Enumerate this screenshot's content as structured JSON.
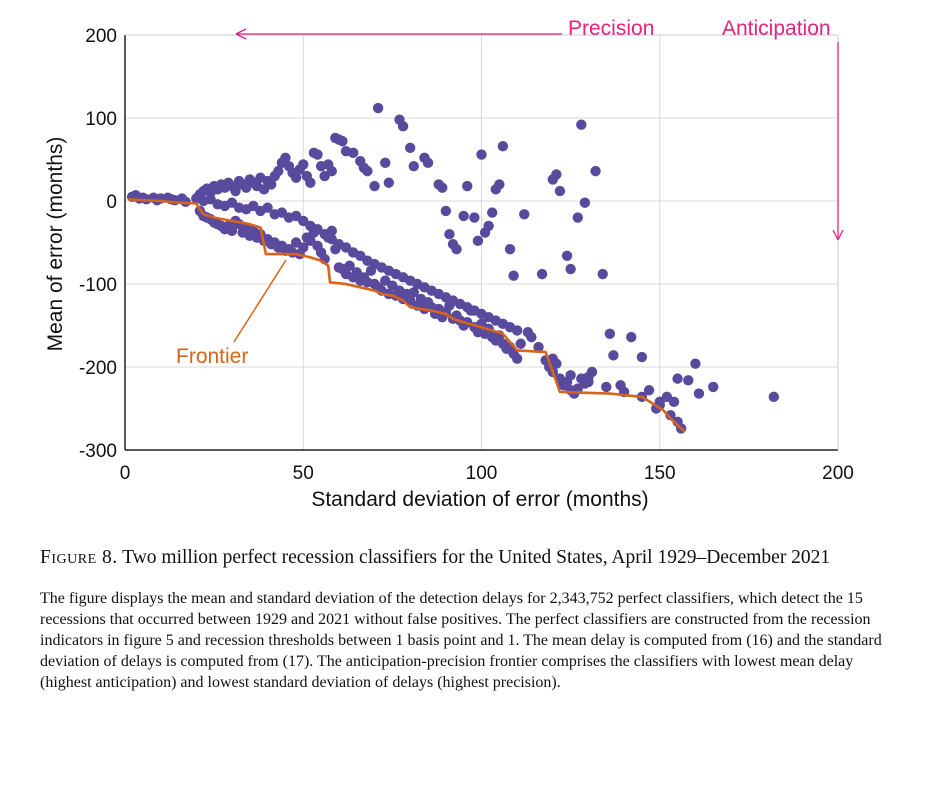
{
  "chart_data": {
    "type": "scatter",
    "xlabel": "Standard deviation of error (months)",
    "ylabel": "Mean of error (months)",
    "xlim": [
      0,
      200
    ],
    "ylim": [
      -300,
      200
    ],
    "xticks": [
      "0",
      "50",
      "100",
      "150",
      "200"
    ],
    "yticks": [
      "200",
      "100",
      "0",
      "-100",
      "-200",
      "-300"
    ],
    "grid": true,
    "marker_color": "#5a4a9e",
    "frontier_color": "#d8641c",
    "annotation_color": "#e3237e",
    "annotations": {
      "precision": "Precision",
      "anticipation": "Anticipation",
      "frontier": "Frontier"
    },
    "points": [
      [
        2,
        5
      ],
      [
        3,
        7
      ],
      [
        4,
        3
      ],
      [
        5,
        4
      ],
      [
        6,
        2
      ],
      [
        8,
        4
      ],
      [
        9,
        1
      ],
      [
        10,
        3
      ],
      [
        12,
        4
      ],
      [
        13,
        2
      ],
      [
        14,
        1
      ],
      [
        16,
        3
      ],
      [
        17,
        -1
      ],
      [
        20,
        3
      ],
      [
        21,
        8
      ],
      [
        22,
        12
      ],
      [
        23,
        15
      ],
      [
        24,
        10
      ],
      [
        25,
        18
      ],
      [
        26,
        14
      ],
      [
        27,
        20
      ],
      [
        28,
        16
      ],
      [
        29,
        22
      ],
      [
        30,
        18
      ],
      [
        31,
        12
      ],
      [
        32,
        24
      ],
      [
        33,
        20
      ],
      [
        34,
        16
      ],
      [
        35,
        26
      ],
      [
        36,
        22
      ],
      [
        37,
        18
      ],
      [
        38,
        28
      ],
      [
        39,
        14
      ],
      [
        40,
        24
      ],
      [
        41,
        20
      ],
      [
        42,
        30
      ],
      [
        43,
        36
      ],
      [
        44,
        46
      ],
      [
        45,
        52
      ],
      [
        46,
        42
      ],
      [
        47,
        34
      ],
      [
        48,
        28
      ],
      [
        49,
        38
      ],
      [
        50,
        44
      ],
      [
        51,
        30
      ],
      [
        52,
        22
      ],
      [
        53,
        58
      ],
      [
        54,
        56
      ],
      [
        55,
        42
      ],
      [
        56,
        30
      ],
      [
        57,
        44
      ],
      [
        58,
        36
      ],
      [
        59,
        76
      ],
      [
        60,
        74
      ],
      [
        61,
        72
      ],
      [
        62,
        60
      ],
      [
        64,
        58
      ],
      [
        66,
        48
      ],
      [
        67,
        40
      ],
      [
        68,
        36
      ],
      [
        70,
        18
      ],
      [
        71,
        112
      ],
      [
        73,
        46
      ],
      [
        74,
        22
      ],
      [
        77,
        98
      ],
      [
        78,
        90
      ],
      [
        80,
        64
      ],
      [
        81,
        42
      ],
      [
        84,
        52
      ],
      [
        85,
        46
      ],
      [
        88,
        20
      ],
      [
        89,
        16
      ],
      [
        90,
        -12
      ],
      [
        91,
        -40
      ],
      [
        92,
        -52
      ],
      [
        93,
        -58
      ],
      [
        95,
        -18
      ],
      [
        96,
        18
      ],
      [
        98,
        -20
      ],
      [
        99,
        -48
      ],
      [
        100,
        56
      ],
      [
        101,
        -38
      ],
      [
        102,
        -30
      ],
      [
        103,
        -14
      ],
      [
        104,
        14
      ],
      [
        105,
        20
      ],
      [
        106,
        66
      ],
      [
        108,
        -58
      ],
      [
        109,
        -90
      ],
      [
        112,
        -16
      ],
      [
        117,
        -88
      ],
      [
        120,
        26
      ],
      [
        121,
        32
      ],
      [
        122,
        12
      ],
      [
        124,
        -66
      ],
      [
        125,
        -82
      ],
      [
        127,
        -20
      ],
      [
        128,
        92
      ],
      [
        129,
        -2
      ],
      [
        132,
        36
      ],
      [
        134,
        -88
      ],
      [
        136,
        -160
      ],
      [
        137,
        -186
      ],
      [
        139,
        -222
      ],
      [
        142,
        -164
      ],
      [
        145,
        -188
      ],
      [
        147,
        -228
      ],
      [
        149,
        -250
      ],
      [
        150,
        -246
      ],
      [
        152,
        -236
      ],
      [
        154,
        -242
      ],
      [
        155,
        -214
      ],
      [
        158,
        -216
      ],
      [
        160,
        -196
      ],
      [
        161,
        -232
      ],
      [
        165,
        -224
      ],
      [
        182,
        -236
      ],
      [
        21,
        -12
      ],
      [
        22,
        -18
      ],
      [
        23,
        -20
      ],
      [
        24,
        -22
      ],
      [
        25,
        -26
      ],
      [
        26,
        -28
      ],
      [
        27,
        -30
      ],
      [
        28,
        -34
      ],
      [
        29,
        -30
      ],
      [
        30,
        -36
      ],
      [
        31,
        -24
      ],
      [
        32,
        -28
      ],
      [
        33,
        -38
      ],
      [
        34,
        -32
      ],
      [
        35,
        -42
      ],
      [
        36,
        -36
      ],
      [
        37,
        -44
      ],
      [
        38,
        -40
      ],
      [
        39,
        -48
      ],
      [
        40,
        -46
      ],
      [
        41,
        -52
      ],
      [
        42,
        -50
      ],
      [
        43,
        -56
      ],
      [
        44,
        -54
      ],
      [
        45,
        -60
      ],
      [
        46,
        -58
      ],
      [
        47,
        -62
      ],
      [
        48,
        -50
      ],
      [
        49,
        -64
      ],
      [
        50,
        -56
      ],
      [
        51,
        -44
      ],
      [
        52,
        -48
      ],
      [
        53,
        -38
      ],
      [
        54,
        -54
      ],
      [
        55,
        -62
      ],
      [
        56,
        -70
      ],
      [
        57,
        -44
      ],
      [
        58,
        -36
      ],
      [
        59,
        -58
      ],
      [
        60,
        -80
      ],
      [
        61,
        -82
      ],
      [
        62,
        -88
      ],
      [
        63,
        -78
      ],
      [
        64,
        -92
      ],
      [
        65,
        -86
      ],
      [
        66,
        -96
      ],
      [
        67,
        -92
      ],
      [
        68,
        -98
      ],
      [
        69,
        -84
      ],
      [
        70,
        -100
      ],
      [
        71,
        -104
      ],
      [
        72,
        -108
      ],
      [
        73,
        -96
      ],
      [
        74,
        -112
      ],
      [
        75,
        -102
      ],
      [
        76,
        -114
      ],
      [
        77,
        -108
      ],
      [
        78,
        -118
      ],
      [
        79,
        -112
      ],
      [
        80,
        -120
      ],
      [
        81,
        -110
      ],
      [
        82,
        -126
      ],
      [
        83,
        -118
      ],
      [
        84,
        -130
      ],
      [
        85,
        -122
      ],
      [
        86,
        -128
      ],
      [
        87,
        -136
      ],
      [
        88,
        -130
      ],
      [
        89,
        -140
      ],
      [
        90,
        -134
      ],
      [
        91,
        -126
      ],
      [
        92,
        -142
      ],
      [
        93,
        -138
      ],
      [
        94,
        -144
      ],
      [
        95,
        -150
      ],
      [
        96,
        -146
      ],
      [
        97,
        -132
      ],
      [
        98,
        -152
      ],
      [
        99,
        -158
      ],
      [
        100,
        -148
      ],
      [
        101,
        -160
      ],
      [
        102,
        -154
      ],
      [
        103,
        -164
      ],
      [
        104,
        -168
      ],
      [
        105,
        -162
      ],
      [
        106,
        -172
      ],
      [
        107,
        -178
      ],
      [
        108,
        -176
      ],
      [
        109,
        -184
      ],
      [
        110,
        -190
      ],
      [
        111,
        -172
      ],
      [
        113,
        -158
      ],
      [
        114,
        -164
      ],
      [
        116,
        -176
      ],
      [
        118,
        -192
      ],
      [
        119,
        -200
      ],
      [
        120,
        -206
      ],
      [
        121,
        -196
      ],
      [
        122,
        -214
      ],
      [
        123,
        -222
      ],
      [
        124,
        -218
      ],
      [
        125,
        -228
      ],
      [
        126,
        -232
      ],
      [
        127,
        -226
      ],
      [
        128,
        -214
      ],
      [
        129,
        -220
      ],
      [
        130,
        -212
      ],
      [
        131,
        -206
      ],
      [
        22,
        0
      ],
      [
        24,
        2
      ],
      [
        26,
        -4
      ],
      [
        28,
        -6
      ],
      [
        30,
        -2
      ],
      [
        32,
        -8
      ],
      [
        34,
        -10
      ],
      [
        36,
        -6
      ],
      [
        38,
        -12
      ],
      [
        40,
        -8
      ],
      [
        42,
        -16
      ],
      [
        44,
        -14
      ],
      [
        46,
        -20
      ],
      [
        48,
        -18
      ],
      [
        50,
        -24
      ],
      [
        52,
        -30
      ],
      [
        54,
        -34
      ],
      [
        56,
        -40
      ],
      [
        58,
        -46
      ],
      [
        60,
        -52
      ],
      [
        62,
        -56
      ],
      [
        64,
        -62
      ],
      [
        66,
        -66
      ],
      [
        68,
        -72
      ],
      [
        70,
        -76
      ],
      [
        72,
        -80
      ],
      [
        74,
        -84
      ],
      [
        76,
        -88
      ],
      [
        78,
        -92
      ],
      [
        80,
        -96
      ],
      [
        82,
        -100
      ],
      [
        84,
        -104
      ],
      [
        86,
        -108
      ],
      [
        88,
        -112
      ],
      [
        90,
        -116
      ],
      [
        92,
        -120
      ],
      [
        94,
        -124
      ],
      [
        96,
        -128
      ],
      [
        98,
        -132
      ],
      [
        100,
        -136
      ],
      [
        102,
        -140
      ],
      [
        104,
        -144
      ],
      [
        106,
        -148
      ],
      [
        108,
        -152
      ],
      [
        110,
        -156
      ],
      [
        120,
        -190
      ],
      [
        125,
        -210
      ],
      [
        130,
        -218
      ],
      [
        135,
        -224
      ],
      [
        140,
        -230
      ],
      [
        145,
        -236
      ],
      [
        150,
        -242
      ],
      [
        153,
        -258
      ],
      [
        155,
        -266
      ],
      [
        156,
        -274
      ]
    ],
    "frontier": [
      [
        1,
        2
      ],
      [
        5,
        1
      ],
      [
        10,
        0
      ],
      [
        15,
        -2
      ],
      [
        20,
        -3
      ],
      [
        21,
        -10
      ],
      [
        22,
        -16
      ],
      [
        25,
        -20
      ],
      [
        30,
        -24
      ],
      [
        35,
        -28
      ],
      [
        38,
        -32
      ],
      [
        39,
        -52
      ],
      [
        39.5,
        -64
      ],
      [
        43,
        -64
      ],
      [
        48,
        -64
      ],
      [
        52,
        -68
      ],
      [
        55,
        -72
      ],
      [
        57,
        -78
      ],
      [
        57.5,
        -98
      ],
      [
        62,
        -100
      ],
      [
        66,
        -104
      ],
      [
        70,
        -108
      ],
      [
        72,
        -112
      ],
      [
        75,
        -114
      ],
      [
        78,
        -120
      ],
      [
        80,
        -128
      ],
      [
        86,
        -132
      ],
      [
        90,
        -136
      ],
      [
        92,
        -142
      ],
      [
        95,
        -146
      ],
      [
        100,
        -152
      ],
      [
        106,
        -160
      ],
      [
        108,
        -170
      ],
      [
        110,
        -180
      ],
      [
        118,
        -182
      ],
      [
        122,
        -230
      ],
      [
        136,
        -232
      ],
      [
        145,
        -236
      ],
      [
        148,
        -244
      ],
      [
        151,
        -252
      ],
      [
        153,
        -262
      ],
      [
        157,
        -278
      ]
    ]
  },
  "caption": {
    "label": "Figure 8.",
    "title": "Two million perfect recession classifiers for the United States, April 1929–December 2021",
    "body": "The figure displays the mean and standard deviation of the detection delays for 2,343,752 perfect classifiers, which detect the 15 recessions that occurred between 1929 and 2021 without false positives. The perfect classifiers are constructed from the recession indicators in figure 5 and recession thresholds between 1 basis point and 1. The mean delay is computed from (16) and the standard deviation of delays is computed from (17). The anticipation-precision frontier comprises the classifiers with lowest mean delay (highest anticipation) and lowest standard deviation of delays (highest precision)."
  }
}
